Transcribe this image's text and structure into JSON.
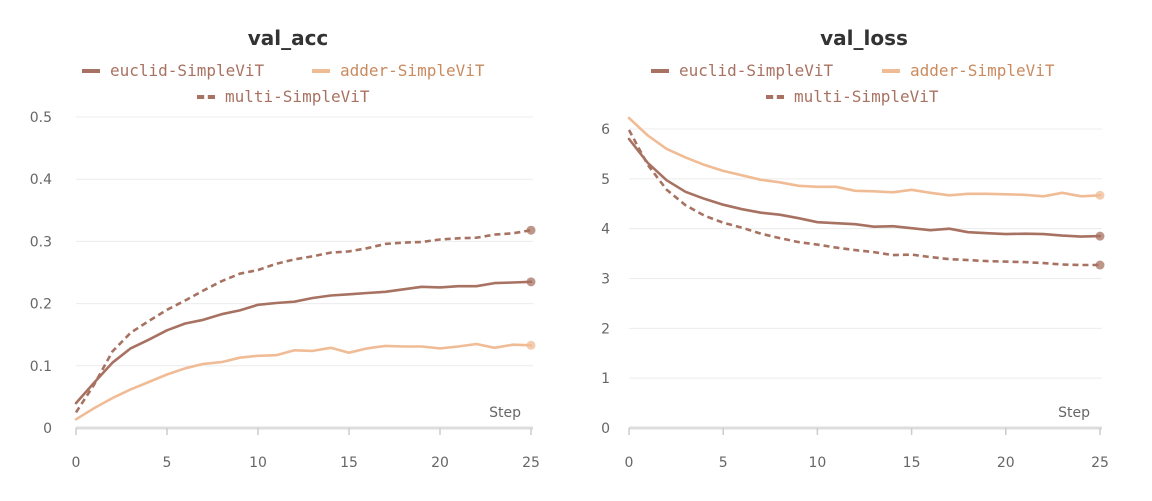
{
  "colors": {
    "euclid": "#a87262",
    "adder": "#f0bc96",
    "multi": "#a87262",
    "grid": "#ececec",
    "axis": "#dddddd",
    "text": "#666666"
  },
  "chart_data": [
    {
      "type": "line",
      "title": "val_acc",
      "xlabel": "Step",
      "ylabel": "",
      "xlim": [
        0,
        25
      ],
      "ylim": [
        0,
        0.5
      ],
      "xticks": [
        0,
        5,
        10,
        15,
        20,
        25
      ],
      "yticks": [
        0,
        0.1,
        0.2,
        0.3,
        0.4,
        0.5
      ],
      "ytick_labels": [
        "0",
        "0.1",
        "0.2",
        "0.3",
        "0.4",
        "0.5"
      ],
      "grid": true,
      "legend": "top",
      "x": [
        0,
        1,
        2,
        3,
        4,
        5,
        6,
        7,
        8,
        9,
        10,
        11,
        12,
        13,
        14,
        15,
        16,
        17,
        18,
        19,
        20,
        21,
        22,
        23,
        24,
        25
      ],
      "series": [
        {
          "name": "euclid-SimpleViT",
          "color": "#a87262",
          "style": "solid",
          "values": [
            0.04,
            0.073,
            0.105,
            0.128,
            0.142,
            0.157,
            0.168,
            0.174,
            0.183,
            0.189,
            0.198,
            0.201,
            0.203,
            0.209,
            0.213,
            0.215,
            0.217,
            0.219,
            0.223,
            0.227,
            0.226,
            0.228,
            0.228,
            0.233,
            0.234,
            0.235
          ]
        },
        {
          "name": "adder-SimpleViT",
          "color": "#f0bc96",
          "style": "solid",
          "values": [
            0.014,
            0.032,
            0.048,
            0.062,
            0.074,
            0.086,
            0.096,
            0.103,
            0.106,
            0.113,
            0.116,
            0.117,
            0.125,
            0.124,
            0.129,
            0.121,
            0.128,
            0.132,
            0.131,
            0.131,
            0.128,
            0.131,
            0.135,
            0.129,
            0.134,
            0.133
          ]
        },
        {
          "name": "multi-SimpleViT",
          "color": "#a87262",
          "style": "dashed",
          "values": [
            0.025,
            0.07,
            0.123,
            0.153,
            0.172,
            0.19,
            0.205,
            0.221,
            0.236,
            0.248,
            0.254,
            0.264,
            0.271,
            0.276,
            0.282,
            0.284,
            0.289,
            0.296,
            0.298,
            0.299,
            0.303,
            0.305,
            0.306,
            0.311,
            0.313,
            0.318
          ]
        }
      ]
    },
    {
      "type": "line",
      "title": "val_loss",
      "xlabel": "Step",
      "ylabel": "",
      "xlim": [
        0,
        25
      ],
      "ylim": [
        0,
        6
      ],
      "xticks": [
        0,
        5,
        10,
        15,
        20,
        25
      ],
      "yticks": [
        0,
        1,
        2,
        3,
        4,
        5,
        6
      ],
      "ytick_labels": [
        "0",
        "1",
        "2",
        "3",
        "4",
        "5",
        "6"
      ],
      "grid": true,
      "legend": "top",
      "x": [
        0,
        1,
        2,
        3,
        4,
        5,
        6,
        7,
        8,
        9,
        10,
        11,
        12,
        13,
        14,
        15,
        16,
        17,
        18,
        19,
        20,
        21,
        22,
        23,
        24,
        25
      ],
      "series": [
        {
          "name": "euclid-SimpleViT",
          "color": "#a87262",
          "style": "solid",
          "values": [
            5.8,
            5.32,
            4.97,
            4.74,
            4.6,
            4.48,
            4.39,
            4.32,
            4.28,
            4.21,
            4.13,
            4.11,
            4.09,
            4.04,
            4.05,
            4.01,
            3.97,
            4.0,
            3.93,
            3.91,
            3.89,
            3.9,
            3.89,
            3.86,
            3.84,
            3.85
          ]
        },
        {
          "name": "adder-SimpleViT",
          "color": "#f0bc96",
          "style": "solid",
          "values": [
            6.22,
            5.87,
            5.6,
            5.43,
            5.28,
            5.16,
            5.07,
            4.98,
            4.93,
            4.86,
            4.84,
            4.84,
            4.76,
            4.75,
            4.73,
            4.78,
            4.72,
            4.67,
            4.7,
            4.7,
            4.69,
            4.68,
            4.65,
            4.72,
            4.65,
            4.67
          ]
        },
        {
          "name": "multi-SimpleViT",
          "color": "#a87262",
          "style": "dashed",
          "values": [
            5.98,
            5.28,
            4.78,
            4.47,
            4.26,
            4.12,
            4.02,
            3.9,
            3.81,
            3.73,
            3.68,
            3.62,
            3.57,
            3.53,
            3.47,
            3.48,
            3.43,
            3.39,
            3.37,
            3.35,
            3.34,
            3.33,
            3.31,
            3.28,
            3.27,
            3.27
          ]
        }
      ]
    }
  ]
}
